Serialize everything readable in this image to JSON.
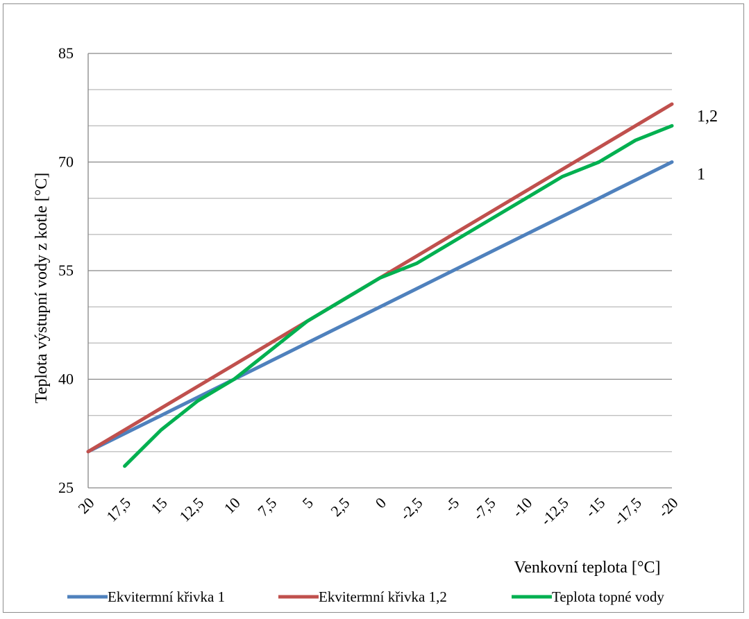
{
  "chart_data": {
    "type": "line",
    "title": "",
    "xlabel": "Venkovní teplota [°C]",
    "ylabel": "Teplota výstupní vody z kotle [°C]",
    "categories": [
      "20",
      "17,5",
      "15",
      "12,5",
      "10",
      "7,5",
      "5",
      "2,5",
      "0",
      "-2,5",
      "-5",
      "-7,5",
      "-10",
      "-12,5",
      "-15",
      "-17,5",
      "-20"
    ],
    "ylim": [
      25,
      85
    ],
    "y_major_ticks": [
      "25",
      "40",
      "55",
      "70",
      "85"
    ],
    "y_minor_step": 5,
    "grid": true,
    "legend_position": "bottom",
    "series": [
      {
        "name": "Ekvitermní křivka 1",
        "color": "#4f81bd",
        "values": [
          30,
          32.5,
          35,
          37.5,
          40,
          42.5,
          45,
          47.5,
          50,
          52.5,
          55,
          57.5,
          60,
          62.5,
          65,
          67.5,
          70
        ]
      },
      {
        "name": "Ekvitermní křivka 1,2",
        "color": "#c0504d",
        "values": [
          30,
          33,
          36,
          39,
          42,
          45,
          48,
          51,
          54,
          57,
          60,
          63,
          66,
          69,
          72,
          75,
          78
        ]
      },
      {
        "name": "Teplota topné vody",
        "color": "#00b050",
        "values": [
          null,
          28,
          33,
          37,
          40,
          44,
          48,
          51,
          54,
          56,
          59,
          62,
          65,
          68,
          70,
          73,
          75
        ]
      }
    ],
    "annotations": [
      {
        "text": "1,2",
        "series": 1
      },
      {
        "text": "1",
        "series": 0
      }
    ]
  }
}
